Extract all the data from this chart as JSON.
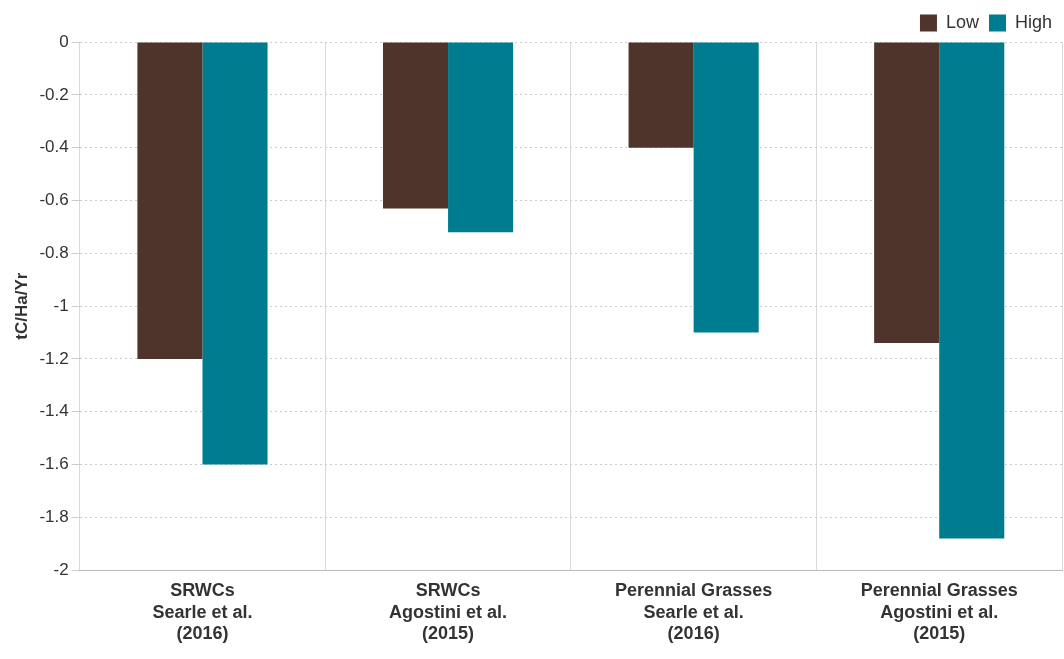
{
  "chart_data": {
    "type": "bar",
    "ylabel": "tC/Ha/Yr",
    "categories": [
      "SRWCs\nSearle et al.\n(2016)",
      "SRWCs\nAgostini et al.\n(2015)",
      "Perennial Grasses\nSearle et al.\n(2016)",
      "Perennial Grasses\nAgostini et al.\n(2015)"
    ],
    "series": [
      {
        "name": "Low",
        "color": "#4e342b",
        "values": [
          -1.2,
          -0.63,
          -0.4,
          -1.14
        ]
      },
      {
        "name": "High",
        "color": "#007c91",
        "values": [
          -1.6,
          -0.72,
          -1.1,
          -1.88
        ]
      }
    ],
    "ylim": [
      -2,
      0
    ],
    "yticks": [
      0,
      -0.2,
      -0.4,
      -0.6,
      -0.8,
      -1,
      -1.2,
      -1.4,
      -1.6,
      -1.8,
      -2
    ],
    "grid": true,
    "legend": "top right"
  }
}
